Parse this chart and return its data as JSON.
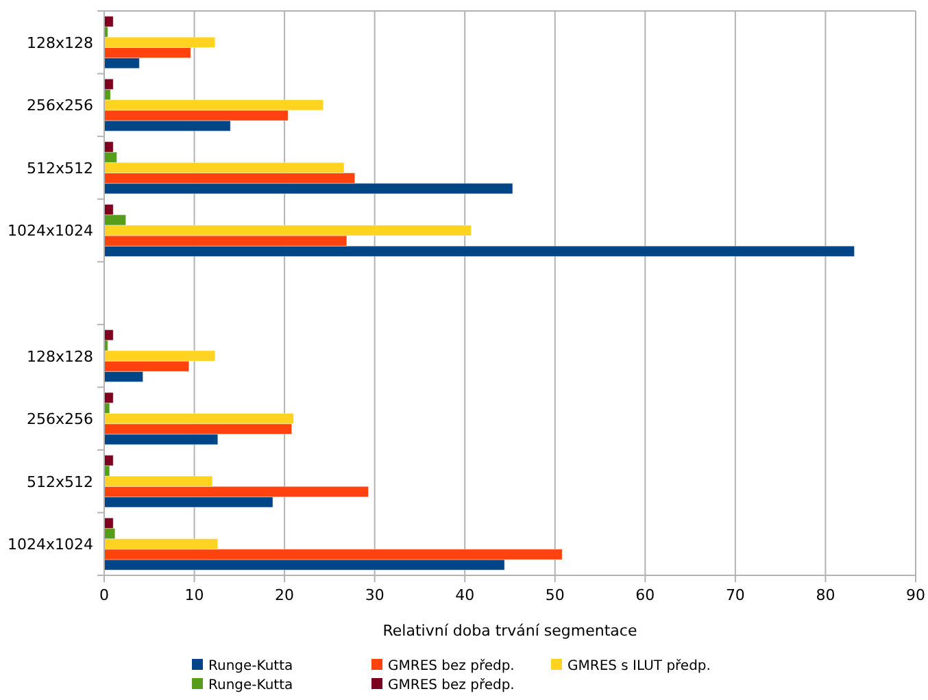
{
  "chart_data": {
    "type": "bar",
    "orientation": "horizontal",
    "xlabel": "Relativní doba trvání segmentace",
    "categories": [
      "128x128",
      "256x256",
      "512x512",
      "1024x1024",
      null,
      "128x128",
      "256x256",
      "512x512",
      "1024x1024"
    ],
    "series": [
      {
        "name": "Runge-Kutta",
        "color": "#004586",
        "values": [
          3.9,
          14.0,
          45.3,
          83.2,
          null,
          4.3,
          12.6,
          18.7,
          44.4
        ]
      },
      {
        "name": "GMRES bez předp.",
        "color": "#ff420e",
        "values": [
          9.6,
          20.4,
          27.8,
          26.9,
          null,
          9.4,
          20.8,
          29.3,
          50.8
        ]
      },
      {
        "name": "GMRES s ILUT předp.",
        "color": "#ffd320",
        "values": [
          12.3,
          24.3,
          26.6,
          40.7,
          null,
          12.3,
          21.0,
          12.0,
          12.6
        ]
      },
      {
        "name": "Runge-Kutta",
        "color": "#579d1c",
        "values": [
          0.4,
          0.7,
          1.4,
          2.4,
          null,
          0.4,
          0.6,
          0.6,
          1.2
        ]
      },
      {
        "name": "GMRES bez předp.",
        "color": "#7e0021",
        "values": [
          1.0,
          1.0,
          1.0,
          1.0,
          null,
          1.0,
          1.0,
          1.0,
          1.0
        ]
      }
    ],
    "xlim": [
      0,
      90
    ],
    "xticks": [
      0,
      10,
      20,
      30,
      40,
      50,
      60,
      70,
      80,
      90
    ],
    "grid": "x",
    "legend": "bottom"
  }
}
